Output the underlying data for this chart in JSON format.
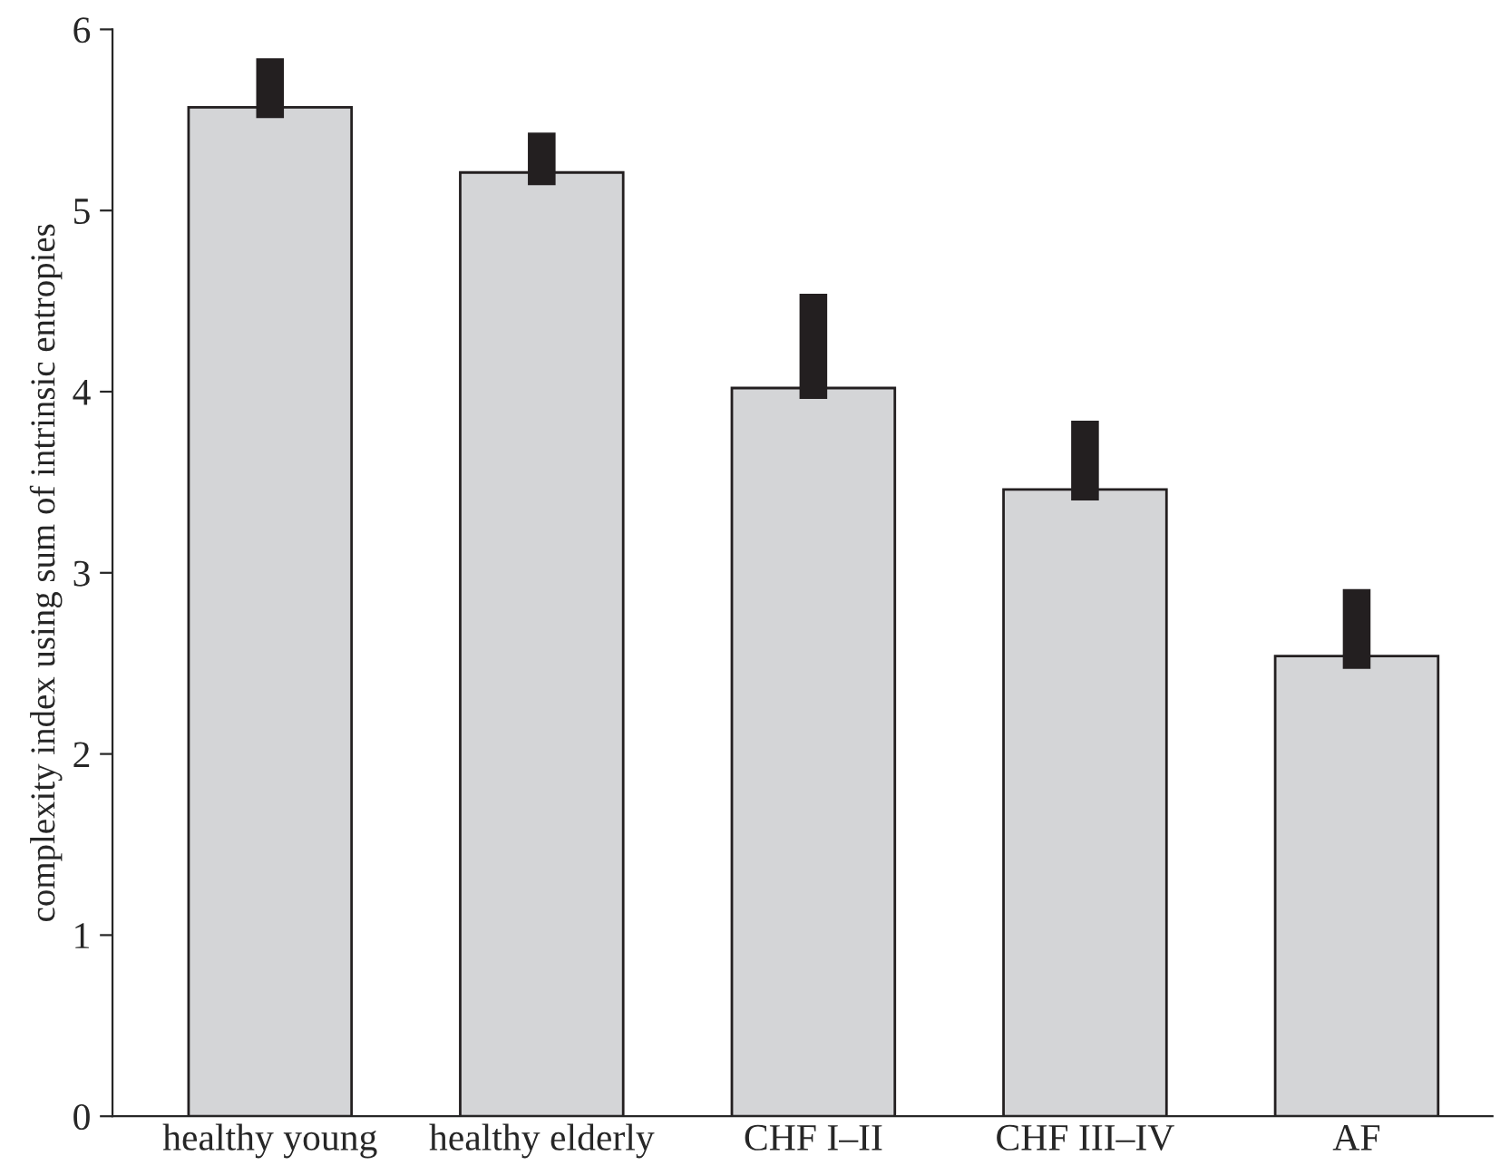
{
  "chart_data": {
    "type": "bar",
    "ylabel": "complexity index using sum of intrinsic entropies",
    "categories": [
      "healthy young",
      "healthy elderly",
      "CHF I–II",
      "CHF III–IV",
      "AF"
    ],
    "values": [
      5.57,
      5.21,
      4.02,
      3.46,
      2.54
    ],
    "errors": [
      [
        5.51,
        5.84
      ],
      [
        5.14,
        5.43
      ],
      [
        3.96,
        4.54
      ],
      [
        3.4,
        3.84
      ],
      [
        2.47,
        2.91
      ]
    ],
    "color": "#d4d5d7",
    "ylim": [
      0,
      6
    ],
    "yticks": [
      0,
      1,
      2,
      3,
      4,
      5,
      6
    ],
    "grid": false
  }
}
